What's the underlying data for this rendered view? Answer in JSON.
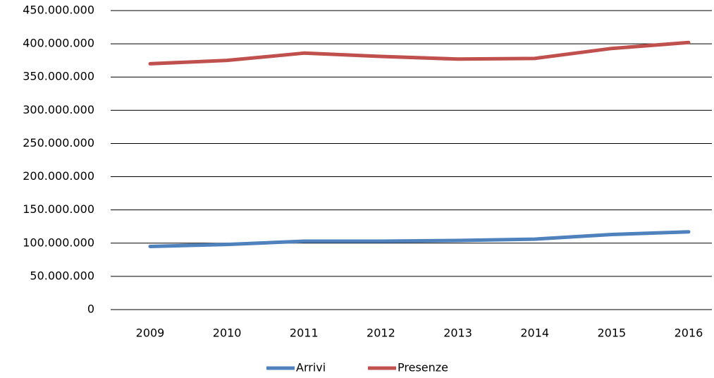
{
  "chart_data": {
    "type": "line",
    "categories": [
      "2009",
      "2010",
      "2011",
      "2012",
      "2013",
      "2014",
      "2015",
      "2016"
    ],
    "series": [
      {
        "name": "Arrivi",
        "color": "#4f81bd",
        "values": [
          95000000,
          98000000,
          103000000,
          103000000,
          104000000,
          106000000,
          113000000,
          117000000
        ]
      },
      {
        "name": "Presenze",
        "color": "#c0504d",
        "values": [
          370000000,
          375000000,
          386000000,
          381000000,
          377000000,
          378000000,
          393000000,
          402000000
        ]
      }
    ],
    "ylim": [
      0,
      450000000
    ],
    "yticks": [
      0,
      {
        "value": 50000000,
        "label": "50.000.000"
      },
      {
        "value": 100000000,
        "label": "100.000.000"
      },
      {
        "value": 150000000,
        "label": "150.000.000"
      },
      {
        "value": 200000000,
        "label": "200.000.000"
      },
      {
        "value": 250000000,
        "label": "250.000.000"
      },
      {
        "value": 300000000,
        "label": "300.000.000"
      },
      {
        "value": 350000000,
        "label": "350.000.000"
      },
      {
        "value": 400000000,
        "label": "400.000.000"
      },
      {
        "value": 450000000,
        "label": "450.000.000"
      }
    ],
    "grid": true,
    "legend": "bottom"
  }
}
